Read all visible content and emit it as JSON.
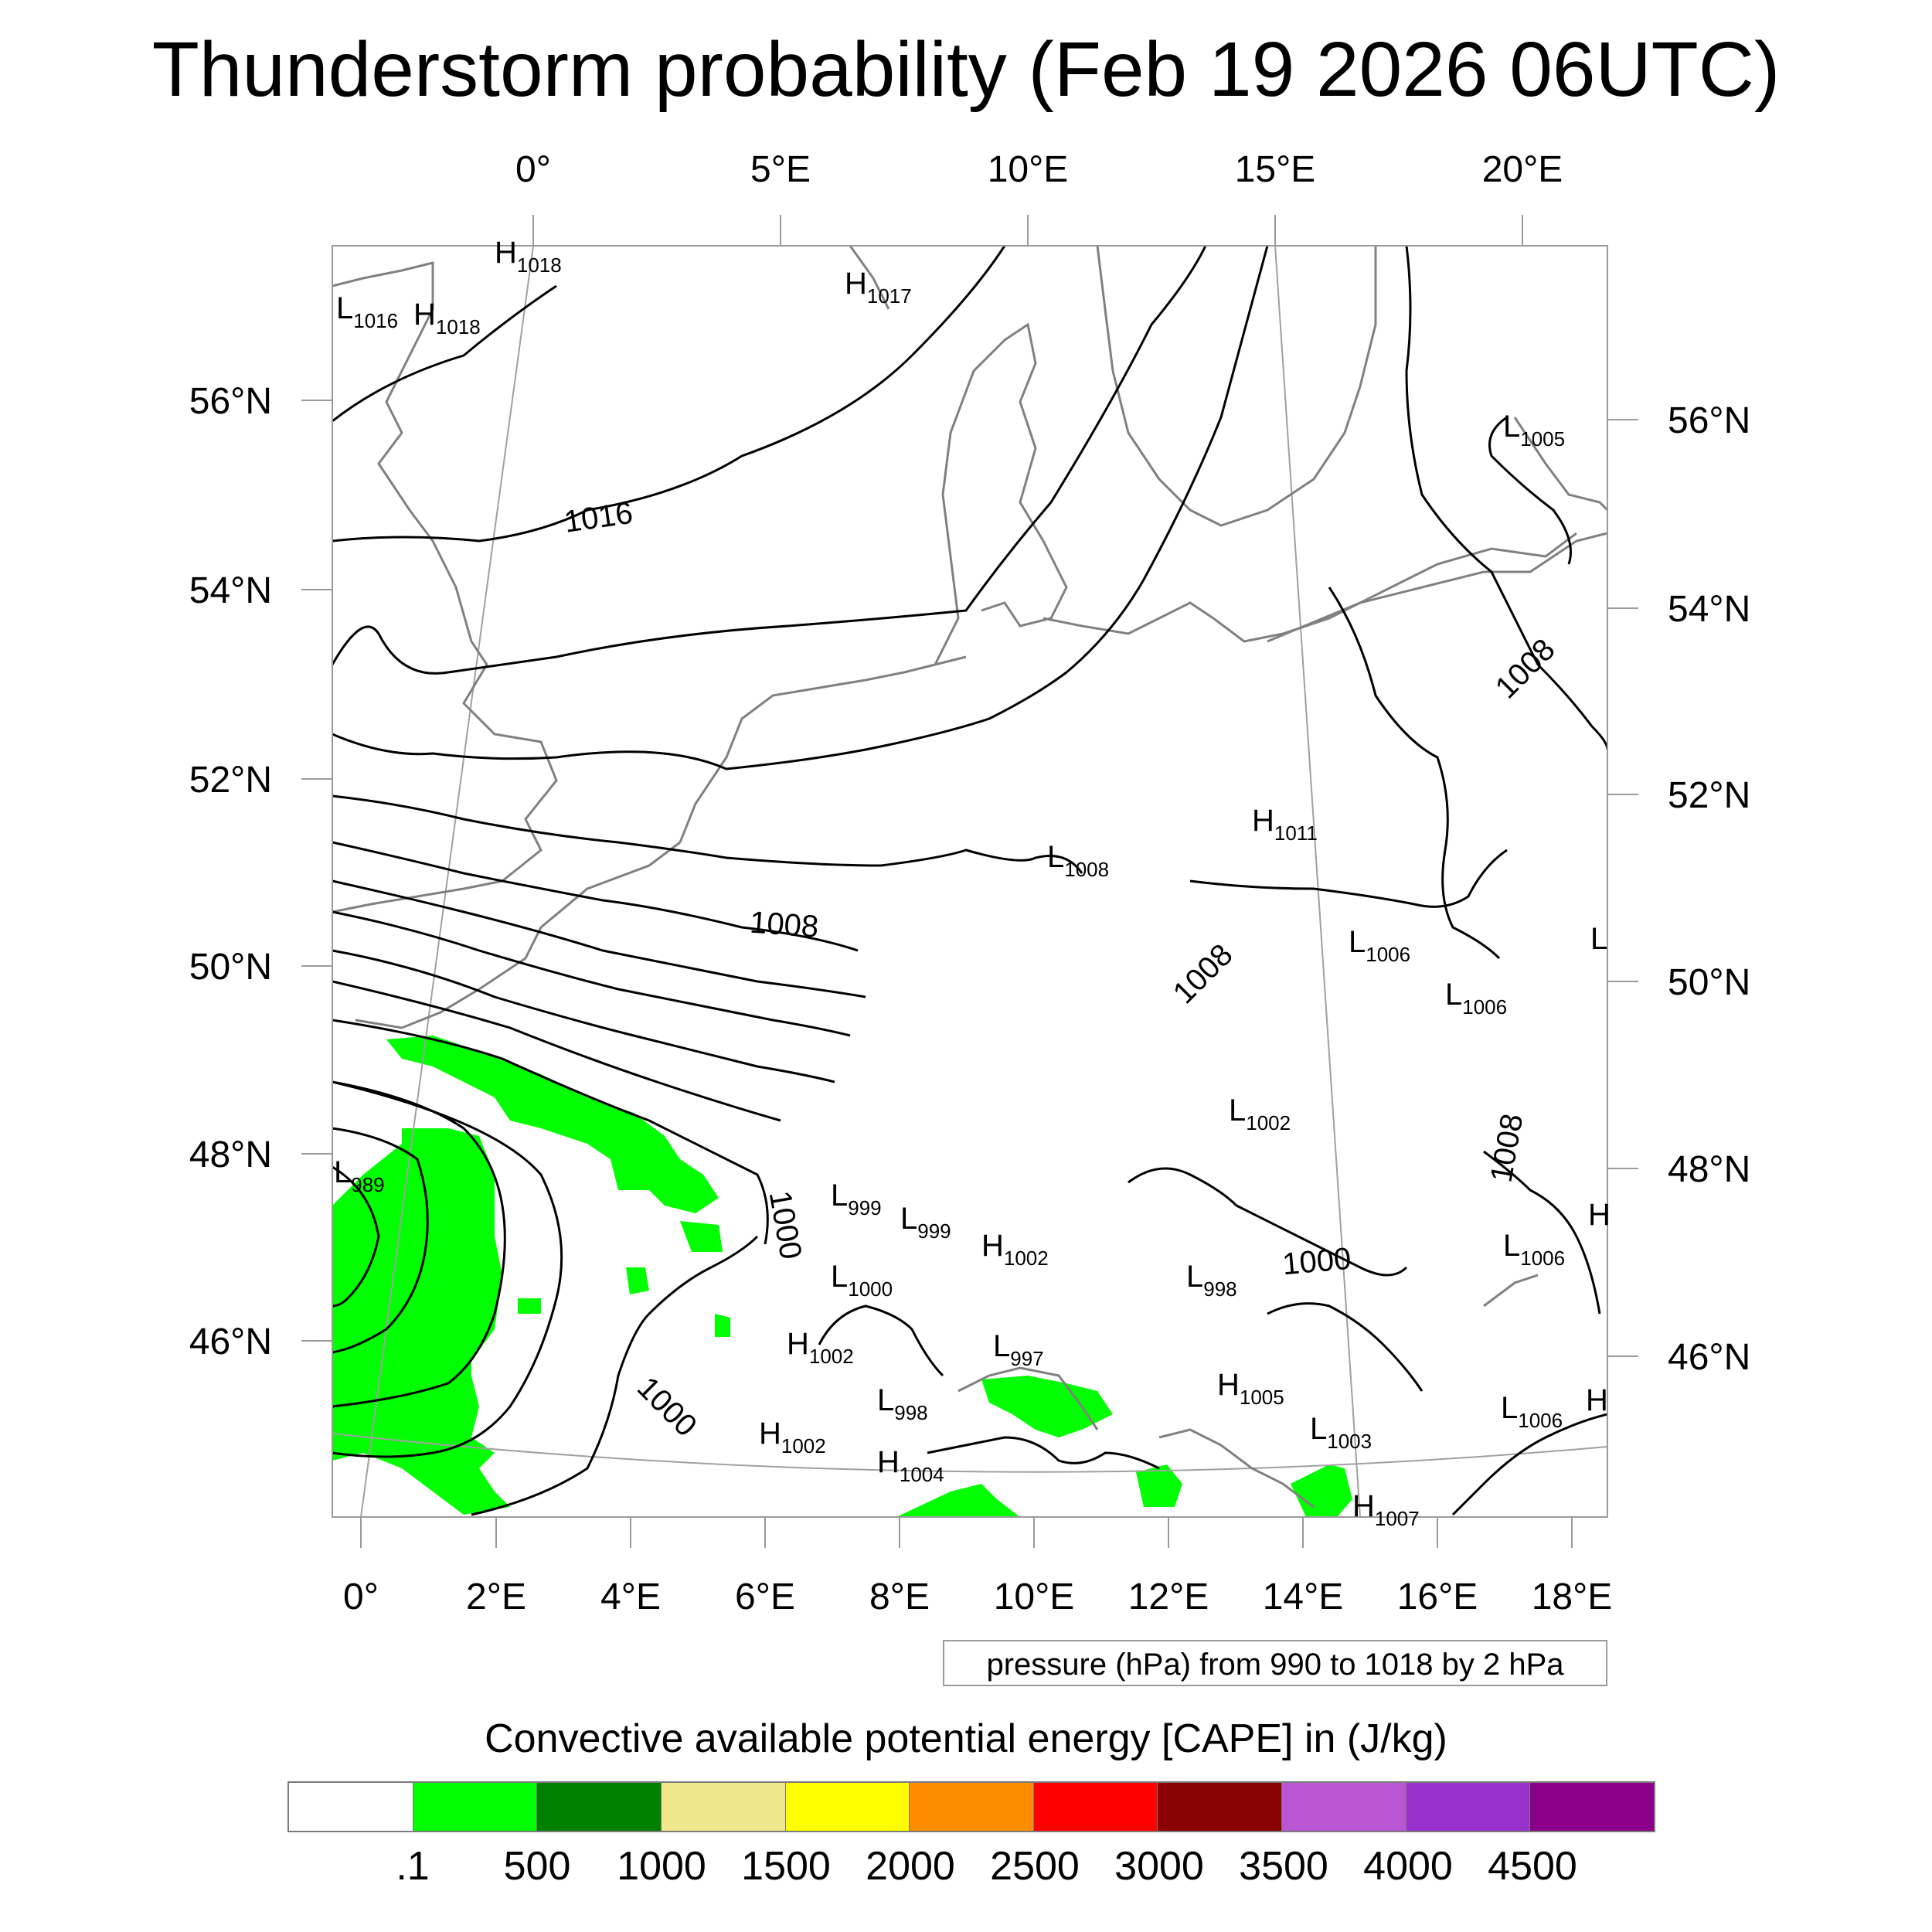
{
  "title": "Thunderstorm probability (Feb 19 2026 06UTC)",
  "top_lon_ticks": [
    "0°",
    "5°E",
    "10°E",
    "15°E",
    "20°E"
  ],
  "bottom_lon_ticks": [
    "0°",
    "2°E",
    "4°E",
    "6°E",
    "8°E",
    "10°E",
    "12°E",
    "14°E",
    "16°E",
    "18°E"
  ],
  "left_lat_ticks": [
    "56°N",
    "54°N",
    "52°N",
    "50°N",
    "48°N",
    "46°N"
  ],
  "right_lat_ticks": [
    "56°N",
    "54°N",
    "52°N",
    "50°N",
    "48°N",
    "46°N"
  ],
  "pressure_centers": [
    {
      "type": "H",
      "value": "1018"
    },
    {
      "type": "L",
      "value": "1016"
    },
    {
      "type": "H",
      "value": "1018"
    },
    {
      "type": "H",
      "value": "1017"
    },
    {
      "type": "L",
      "value": "1005"
    },
    {
      "type": "L",
      "value": "1008"
    },
    {
      "type": "H",
      "value": "1011"
    },
    {
      "type": "L",
      "value": "1006"
    },
    {
      "type": "L",
      "value": "1006"
    },
    {
      "type": "L",
      "value": "1002"
    },
    {
      "type": "L",
      "value": "989"
    },
    {
      "type": "L",
      "value": "999"
    },
    {
      "type": "L",
      "value": "999"
    },
    {
      "type": "H",
      "value": "1002"
    },
    {
      "type": "L",
      "value": "1000"
    },
    {
      "type": "L",
      "value": "998"
    },
    {
      "type": "L",
      "value": "1006"
    },
    {
      "type": "H",
      "value": "1002"
    },
    {
      "type": "L",
      "value": "997"
    },
    {
      "type": "L",
      "value": "998"
    },
    {
      "type": "H",
      "value": "1005"
    },
    {
      "type": "H",
      "value": "1002"
    },
    {
      "type": "L",
      "value": "1003"
    },
    {
      "type": "L",
      "value": "1006"
    },
    {
      "type": "H",
      "value": "1004"
    },
    {
      "type": "H",
      "value": "1007"
    }
  ],
  "partial_center_letters": [
    "L",
    "H",
    "H"
  ],
  "contour_labels": [
    "1016",
    "1008",
    "1008",
    "1008",
    "1008",
    "1000",
    "1000",
    "1000"
  ],
  "pressure_note": "pressure (hPa) from 990 to 1018 by 2 hPa",
  "colorbar": {
    "title": "Convective available potential energy [CAPE] in (J/kg)",
    "colors": [
      "#ffffff",
      "#00ff00",
      "#008000",
      "#f0e68c",
      "#ffff00",
      "#ff8c00",
      "#ff0000",
      "#8b0000",
      "#ba55d3",
      "#9932cc",
      "#8b008b"
    ],
    "labels": [
      ".1",
      "500",
      "1000",
      "1500",
      "2000",
      "2500",
      "3000",
      "3500",
      "4000",
      "4500"
    ]
  },
  "colors": {
    "cape_fill": "#00ff00",
    "coastline": "#808080",
    "isobar": "#000000",
    "graticule": "#a0a0a0"
  }
}
